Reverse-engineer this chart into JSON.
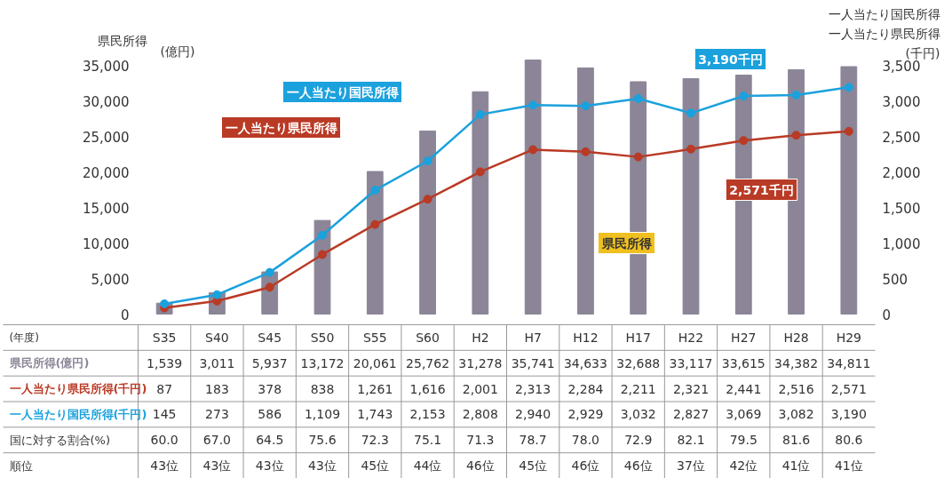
{
  "chart_data": {
    "type": "bar",
    "ylabel": "県民所得",
    "y2label": "(千円)",
    "xlabel": "(年度)",
    "categories": [
      "S35",
      "S40",
      "S45",
      "S50",
      "S55",
      "S60",
      "H2",
      "H7",
      "H12",
      "H17",
      "H22",
      "H27",
      "H28",
      "H29"
    ],
    "series": [
      {
        "name": "県民所得(億円)",
        "color": "#8b8597",
        "values": [
          1539,
          3011,
          5937,
          13172,
          20061,
          25762,
          31278,
          35741,
          34633,
          32688,
          33117,
          33615,
          34382,
          34811
        ],
        "value_labels": [
          "1,539",
          "3,011",
          "5,937",
          "13,172",
          "20,061",
          "25,762",
          "31,278",
          "35,741",
          "34,633",
          "32,688",
          "33,117",
          "33,615",
          "34,382",
          "34,811"
        ]
      },
      {
        "name": "一人当たり県民所得(千円)",
        "type": "line",
        "axis": "y2",
        "color": "#b93a25",
        "values": [
          87,
          183,
          378,
          838,
          1261,
          1616,
          2001,
          2313,
          2284,
          2211,
          2321,
          2441,
          2516,
          2571
        ],
        "value_labels": [
          "87",
          "183",
          "378",
          "838",
          "1,261",
          "1,616",
          "2,001",
          "2,313",
          "2,284",
          "2,211",
          "2,321",
          "2,441",
          "2,516",
          "2,571"
        ]
      },
      {
        "name": "一人当たり国民所得(千円)",
        "type": "line",
        "axis": "y2",
        "color": "#1ba1dd",
        "values": [
          145,
          273,
          586,
          1109,
          1743,
          2153,
          2808,
          2940,
          2929,
          3032,
          2827,
          3069,
          3082,
          3190
        ],
        "value_labels": [
          "145",
          "273",
          "586",
          "1,109",
          "1,743",
          "2,153",
          "2,808",
          "2,940",
          "2,929",
          "3,032",
          "2,827",
          "3,069",
          "3,082",
          "3,190"
        ]
      }
    ],
    "ylim": [
      0,
      36000
    ],
    "yticks": [
      0,
      {
        "value": 5000,
        "label": "5,000"
      },
      {
        "value": 10000,
        "label": "10,000"
      },
      {
        "value": 15000,
        "label": "15,000"
      },
      {
        "value": 20000,
        "label": "20,000"
      },
      {
        "value": 25000,
        "label": "25,000"
      },
      {
        "value": 30000,
        "label": "30,000"
      },
      {
        "value": 35000,
        "label": "35,000"
      }
    ],
    "y2lim": [
      0,
      3600
    ],
    "y2ticks": [
      0,
      500,
      {
        "value": 1000,
        "label": "1,000"
      },
      {
        "value": 1500,
        "label": "1,500"
      },
      {
        "value": 2000,
        "label": "2,000"
      },
      {
        "value": 2500,
        "label": "2,500"
      },
      {
        "value": 3000,
        "label": "3,000"
      },
      {
        "value": 3500,
        "label": "3,500"
      }
    ],
    "marker": "circle",
    "grid": false,
    "legend": false,
    "annotations": [
      "(億円)",
      "一人当たり国民所得",
      "一人当たり県民所得",
      "県民所得",
      "一人当たり県民所得",
      "一人当たり国民所得",
      "3,190千円",
      "2,571千円",
      "国に対する割合(%)",
      "60.0",
      "67.0",
      "64.5",
      "75.6",
      "72.3",
      "75.1",
      "71.3",
      "78.7",
      "78.0",
      "72.9",
      "82.1",
      "79.5",
      "81.6",
      "80.6",
      "順位",
      "43位",
      "43位",
      "43位",
      "43位",
      "45位",
      "44位",
      "46位",
      "45位",
      "46位",
      "46位",
      "37位",
      "42位",
      "41位",
      "41位"
    ]
  }
}
